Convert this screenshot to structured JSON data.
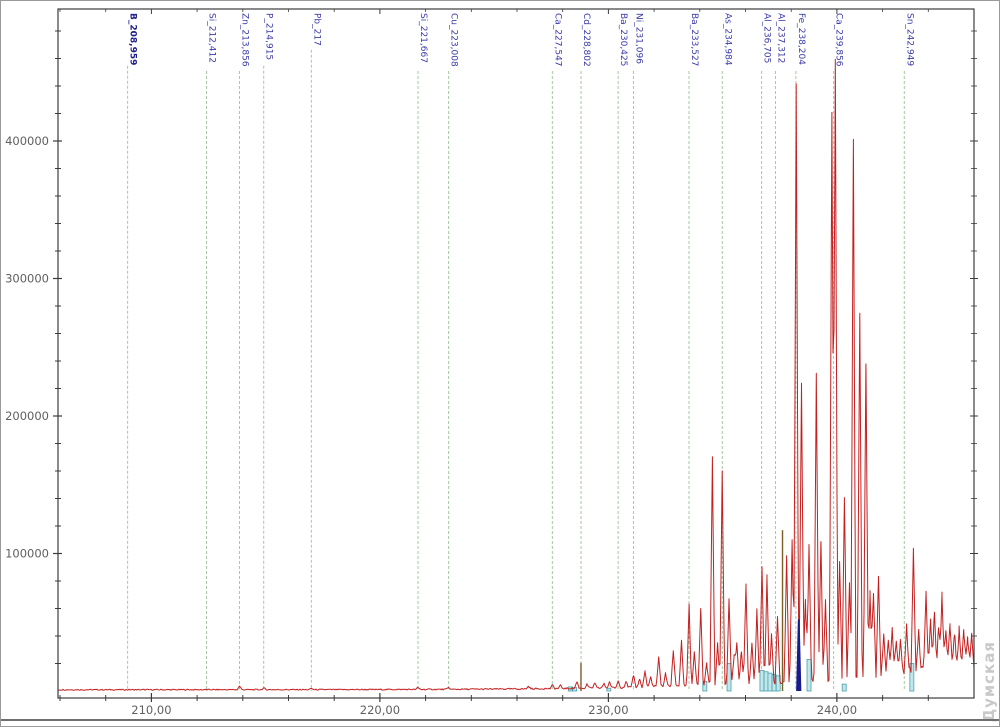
{
  "watermark": {
    "text": "Думская",
    "color": "#c9c9c9"
  },
  "chart_data": {
    "type": "line",
    "title": "",
    "xlabel": "",
    "ylabel": "",
    "x_unit": "nm (wavelength)",
    "y_unit": "intensity (counts)",
    "xlim": [
      205.9,
      246.0
    ],
    "ylim": [
      0,
      495000
    ],
    "grid": false,
    "legend": "none",
    "x_ticks": [
      {
        "value": 210,
        "label": "210,00"
      },
      {
        "value": 220,
        "label": "220,00"
      },
      {
        "value": 230,
        "label": "230,00"
      },
      {
        "value": 240,
        "label": "240,00"
      }
    ],
    "y_ticks": [
      {
        "value": 100000,
        "label": "100000"
      },
      {
        "value": 200000,
        "label": "200000"
      },
      {
        "value": 300000,
        "label": "300000"
      },
      {
        "value": 400000,
        "label": "400000"
      }
    ],
    "x_minor_step": 2,
    "y_minor_step": 20000,
    "colors": {
      "trace": "#c42020",
      "element_line": "#a5c8a5",
      "element_label": "#3b3baa",
      "element_label_selected": "#20208a",
      "axis": "#3c3c3c",
      "tick_label": "#5f5f5f",
      "integration_bar_fill": "#c2e8ec",
      "integration_bar_stroke": "#49a0ad",
      "marked_peak_navy": "#191990",
      "secondary_peak_olive": "#7b5d26"
    },
    "element_markers": [
      {
        "label": "B_208,959",
        "wavelength": 208.959,
        "bold": true
      },
      {
        "label": "Si_212,412",
        "wavelength": 212.412,
        "bold": false
      },
      {
        "label": "Zn_213,856",
        "wavelength": 213.856,
        "bold": false
      },
      {
        "label": "P_214,915",
        "wavelength": 214.915,
        "bold": false
      },
      {
        "label": "Pb_217",
        "wavelength": 217.0,
        "bold": false
      },
      {
        "label": "Si_221,667",
        "wavelength": 221.667,
        "bold": false
      },
      {
        "label": "Cu_223,008",
        "wavelength": 223.008,
        "bold": false
      },
      {
        "label": "Ca_227,547",
        "wavelength": 227.547,
        "bold": false
      },
      {
        "label": "Cd_228,802",
        "wavelength": 228.802,
        "bold": false
      },
      {
        "label": "Ba_230,425",
        "wavelength": 230.425,
        "bold": false
      },
      {
        "label": "Ni_231,096",
        "wavelength": 231.096,
        "bold": false
      },
      {
        "label": "Ba_233,527",
        "wavelength": 233.527,
        "bold": false
      },
      {
        "label": "As_234,984",
        "wavelength": 234.984,
        "bold": false
      },
      {
        "label": "Al_236,705",
        "wavelength": 236.705,
        "bold": false
      },
      {
        "label": "Al_237,312",
        "wavelength": 237.312,
        "bold": false
      },
      {
        "label": "Fe_238,204",
        "wavelength": 238.204,
        "bold": false
      },
      {
        "label": "Ca_239,856",
        "wavelength": 239.856,
        "bold": false
      },
      {
        "label": "Sn_242,949",
        "wavelength": 242.949,
        "bold": false
      }
    ],
    "peaks": [
      [
        213.86,
        2600
      ],
      [
        214.92,
        1200
      ],
      [
        217.0,
        900
      ],
      [
        221.67,
        1500
      ],
      [
        223.01,
        1300
      ],
      [
        226.5,
        1800
      ],
      [
        227.55,
        2500
      ],
      [
        227.9,
        2200
      ],
      [
        228.62,
        5000
      ],
      [
        229.07,
        3000
      ],
      [
        229.4,
        3500
      ],
      [
        229.8,
        3200
      ],
      [
        230.05,
        4200
      ],
      [
        230.43,
        5000
      ],
      [
        230.77,
        4000
      ],
      [
        231.1,
        8500
      ],
      [
        231.36,
        6000
      ],
      [
        231.6,
        11500
      ],
      [
        231.85,
        7000
      ],
      [
        232.2,
        21000
      ],
      [
        232.5,
        9000
      ],
      [
        232.84,
        26000
      ],
      [
        233.2,
        32000
      ],
      [
        233.53,
        58000
      ],
      [
        233.76,
        24000
      ],
      [
        234.04,
        56000
      ],
      [
        234.3,
        15000
      ],
      [
        234.55,
        165000
      ],
      [
        234.78,
        30000
      ],
      [
        234.98,
        155000
      ],
      [
        235.28,
        62000
      ],
      [
        235.5,
        20000
      ],
      [
        235.62,
        29000
      ],
      [
        235.82,
        24000
      ],
      [
        236.02,
        71000
      ],
      [
        236.28,
        29000
      ],
      [
        236.5,
        53000
      ],
      [
        236.72,
        85000
      ],
      [
        236.94,
        77000
      ],
      [
        237.14,
        34000
      ],
      [
        237.4,
        49000
      ],
      [
        237.8,
        91000
      ],
      [
        238.04,
        102000
      ],
      [
        238.22,
        434000
      ],
      [
        238.45,
        218000
      ],
      [
        238.62,
        60000
      ],
      [
        238.78,
        100000
      ],
      [
        239.1,
        222000
      ],
      [
        239.3,
        102000
      ],
      [
        239.5,
        58000
      ],
      [
        239.78,
        414000
      ],
      [
        239.93,
        451000
      ],
      [
        240.12,
        85000
      ],
      [
        240.33,
        133000
      ],
      [
        240.55,
        70000
      ],
      [
        240.72,
        393000
      ],
      [
        241.0,
        265000
      ],
      [
        241.27,
        229000
      ],
      [
        241.45,
        60000
      ],
      [
        241.6,
        61000
      ],
      [
        241.82,
        71000
      ],
      [
        242.05,
        30000
      ],
      [
        242.25,
        26000
      ],
      [
        242.42,
        32000
      ],
      [
        242.6,
        24000
      ],
      [
        242.78,
        26000
      ],
      [
        243.05,
        33000
      ],
      [
        243.35,
        87000
      ],
      [
        243.58,
        27000
      ],
      [
        243.9,
        58000
      ],
      [
        244.1,
        35000
      ],
      [
        244.27,
        44000
      ],
      [
        244.45,
        30000
      ],
      [
        244.6,
        53000
      ],
      [
        244.77,
        30000
      ],
      [
        244.95,
        33000
      ],
      [
        245.15,
        27000
      ],
      [
        245.35,
        30000
      ],
      [
        245.55,
        28000
      ],
      [
        245.72,
        24000
      ],
      [
        245.9,
        26000
      ]
    ],
    "olive_peaks": [
      [
        228.8,
        20500
      ],
      [
        237.62,
        117000
      ]
    ],
    "navy_marked_peak": {
      "wavelength": 238.33,
      "intensity": 52000
    },
    "integration_bars": [
      [
        228.33,
        3000
      ],
      [
        228.52,
        2500
      ],
      [
        230.02,
        2000
      ],
      [
        234.22,
        7000
      ],
      [
        235.28,
        20000
      ],
      [
        236.72,
        15000
      ],
      [
        236.9,
        14000
      ],
      [
        237.07,
        13000
      ],
      [
        237.25,
        12000
      ],
      [
        237.43,
        11000
      ],
      [
        238.78,
        23000
      ],
      [
        240.32,
        5000
      ],
      [
        243.28,
        20000
      ]
    ],
    "baseline_points": [
      [
        205.9,
        900
      ],
      [
        212,
        950
      ],
      [
        218,
        1000
      ],
      [
        223,
        1200
      ],
      [
        226,
        1500
      ],
      [
        228.5,
        1900
      ],
      [
        230,
        2300
      ],
      [
        231.5,
        3000
      ],
      [
        233,
        4000
      ],
      [
        234.5,
        5000
      ],
      [
        236,
        5800
      ],
      [
        237.5,
        6500
      ],
      [
        239,
        7500
      ],
      [
        240.5,
        9500
      ],
      [
        241.5,
        11500
      ],
      [
        242.5,
        13500
      ],
      [
        243.5,
        15000
      ],
      [
        244.5,
        16000
      ],
      [
        246,
        17000
      ]
    ]
  }
}
